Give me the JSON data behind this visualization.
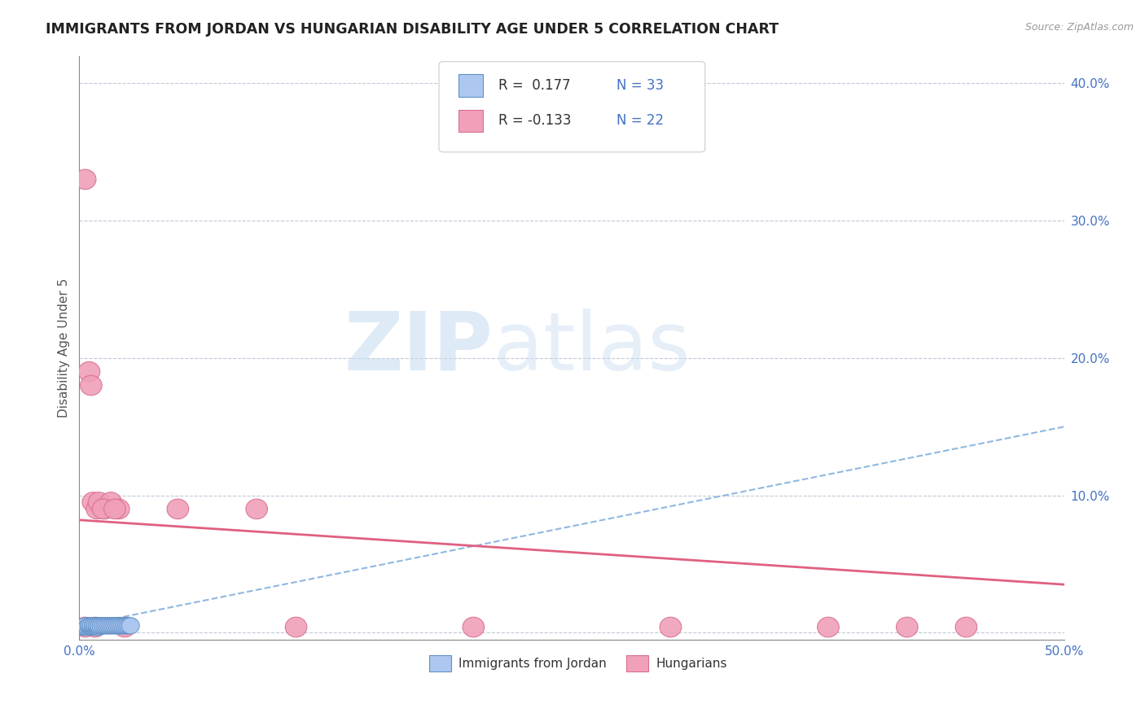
{
  "title": "IMMIGRANTS FROM JORDAN VS HUNGARIAN DISABILITY AGE UNDER 5 CORRELATION CHART",
  "source": "Source: ZipAtlas.com",
  "ylabel": "Disability Age Under 5",
  "xlim": [
    0.0,
    0.5
  ],
  "ylim": [
    -0.005,
    0.42
  ],
  "xticks": [
    0.0,
    0.1,
    0.2,
    0.3,
    0.4,
    0.5
  ],
  "yticks": [
    0.0,
    0.1,
    0.2,
    0.3,
    0.4
  ],
  "ytick_labels": [
    "",
    "10.0%",
    "20.0%",
    "30.0%",
    "40.0%"
  ],
  "xtick_labels": [
    "0.0%",
    "",
    "",
    "",
    "",
    "50.0%"
  ],
  "legend_r1": "R =  0.177",
  "legend_n1": "N = 33",
  "legend_r2": "R = -0.133",
  "legend_n2": "N = 22",
  "color_jordan": "#adc8f0",
  "color_hungarian": "#f0a0b8",
  "trendline_jordan_color": "#90b8e0",
  "trendline_hungarian_color": "#e06080",
  "watermark_zip": "ZIP",
  "watermark_atlas": "atlas",
  "jordan_x": [
    0.001,
    0.002,
    0.003,
    0.003,
    0.004,
    0.005,
    0.005,
    0.006,
    0.007,
    0.007,
    0.008,
    0.008,
    0.009,
    0.009,
    0.01,
    0.01,
    0.011,
    0.012,
    0.013,
    0.014,
    0.015,
    0.016,
    0.017,
    0.018,
    0.019,
    0.02,
    0.021,
    0.022,
    0.023,
    0.024,
    0.025,
    0.026,
    0.027
  ],
  "jordan_y": [
    0.004,
    0.004,
    0.004,
    0.006,
    0.004,
    0.004,
    0.006,
    0.004,
    0.004,
    0.006,
    0.004,
    0.006,
    0.004,
    0.005,
    0.004,
    0.007,
    0.005,
    0.005,
    0.005,
    0.006,
    0.005,
    0.006,
    0.005,
    0.006,
    0.005,
    0.006,
    0.005,
    0.006,
    0.005,
    0.006,
    0.005,
    0.006,
    0.006
  ],
  "hungarian_x": [
    0.001,
    0.003,
    0.005,
    0.007,
    0.009,
    0.011,
    0.013,
    0.015,
    0.018,
    0.022,
    0.028,
    0.05,
    0.09,
    0.13,
    0.19,
    0.24,
    0.28,
    0.33,
    0.38,
    0.42,
    0.45,
    0.48
  ],
  "hungarian_y": [
    0.004,
    0.09,
    0.004,
    0.095,
    0.18,
    0.095,
    0.12,
    0.175,
    0.09,
    0.095,
    0.09,
    0.004,
    0.095,
    0.004,
    0.004,
    0.004,
    0.095,
    0.004,
    0.004,
    0.004,
    0.01,
    0.004
  ],
  "hungarian_x_spread": [
    0.002,
    0.004,
    0.004,
    0.006,
    0.008,
    0.01,
    0.012,
    0.014,
    0.017,
    0.022,
    0.03,
    0.05,
    0.09,
    0.13,
    0.19,
    0.24,
    0.28,
    0.33,
    0.38,
    0.42,
    0.45,
    0.48
  ]
}
